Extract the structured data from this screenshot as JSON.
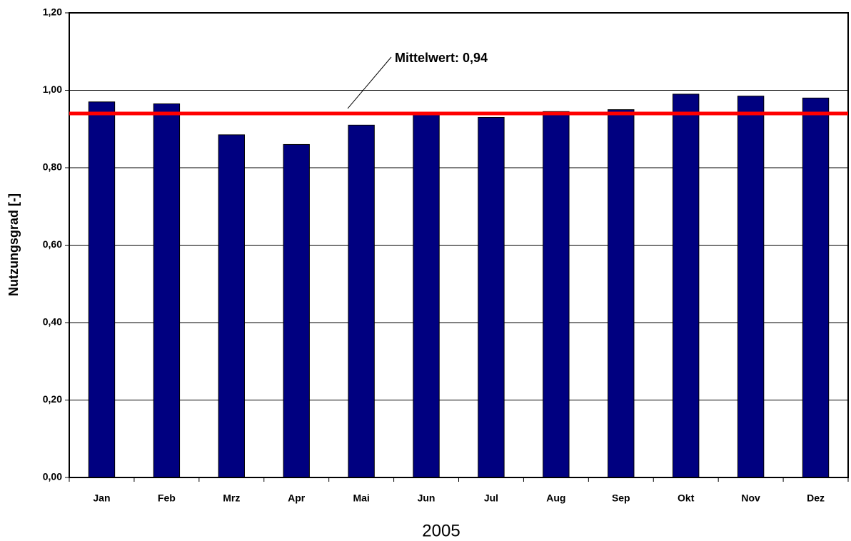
{
  "chart_data": {
    "type": "bar",
    "categories": [
      "Jan",
      "Feb",
      "Mrz",
      "Apr",
      "Mai",
      "Jun",
      "Jul",
      "Aug",
      "Sep",
      "Okt",
      "Nov",
      "Dez"
    ],
    "values": [
      0.97,
      0.965,
      0.885,
      0.86,
      0.91,
      0.94,
      0.93,
      0.945,
      0.95,
      0.99,
      0.985,
      0.98
    ],
    "color": "#000080",
    "x_label": "2005",
    "y_label": "Nutzungsgrad [-]",
    "ylim": [
      0,
      1.2
    ],
    "yticks": [
      {
        "value": 0,
        "label": "0,00"
      },
      {
        "value": 0.2,
        "label": "0,20"
      },
      {
        "value": 0.4,
        "label": "0,40"
      },
      {
        "value": 0.6,
        "label": "0,60"
      },
      {
        "value": 0.8,
        "label": "0,80"
      },
      {
        "value": 1.0,
        "label": "1,00"
      },
      {
        "value": 1.2,
        "label": "1,20"
      }
    ],
    "grid": true,
    "mean_line": {
      "value": 0.94,
      "label": "Mittelwert: 0,94",
      "color": "#ff0000"
    }
  }
}
